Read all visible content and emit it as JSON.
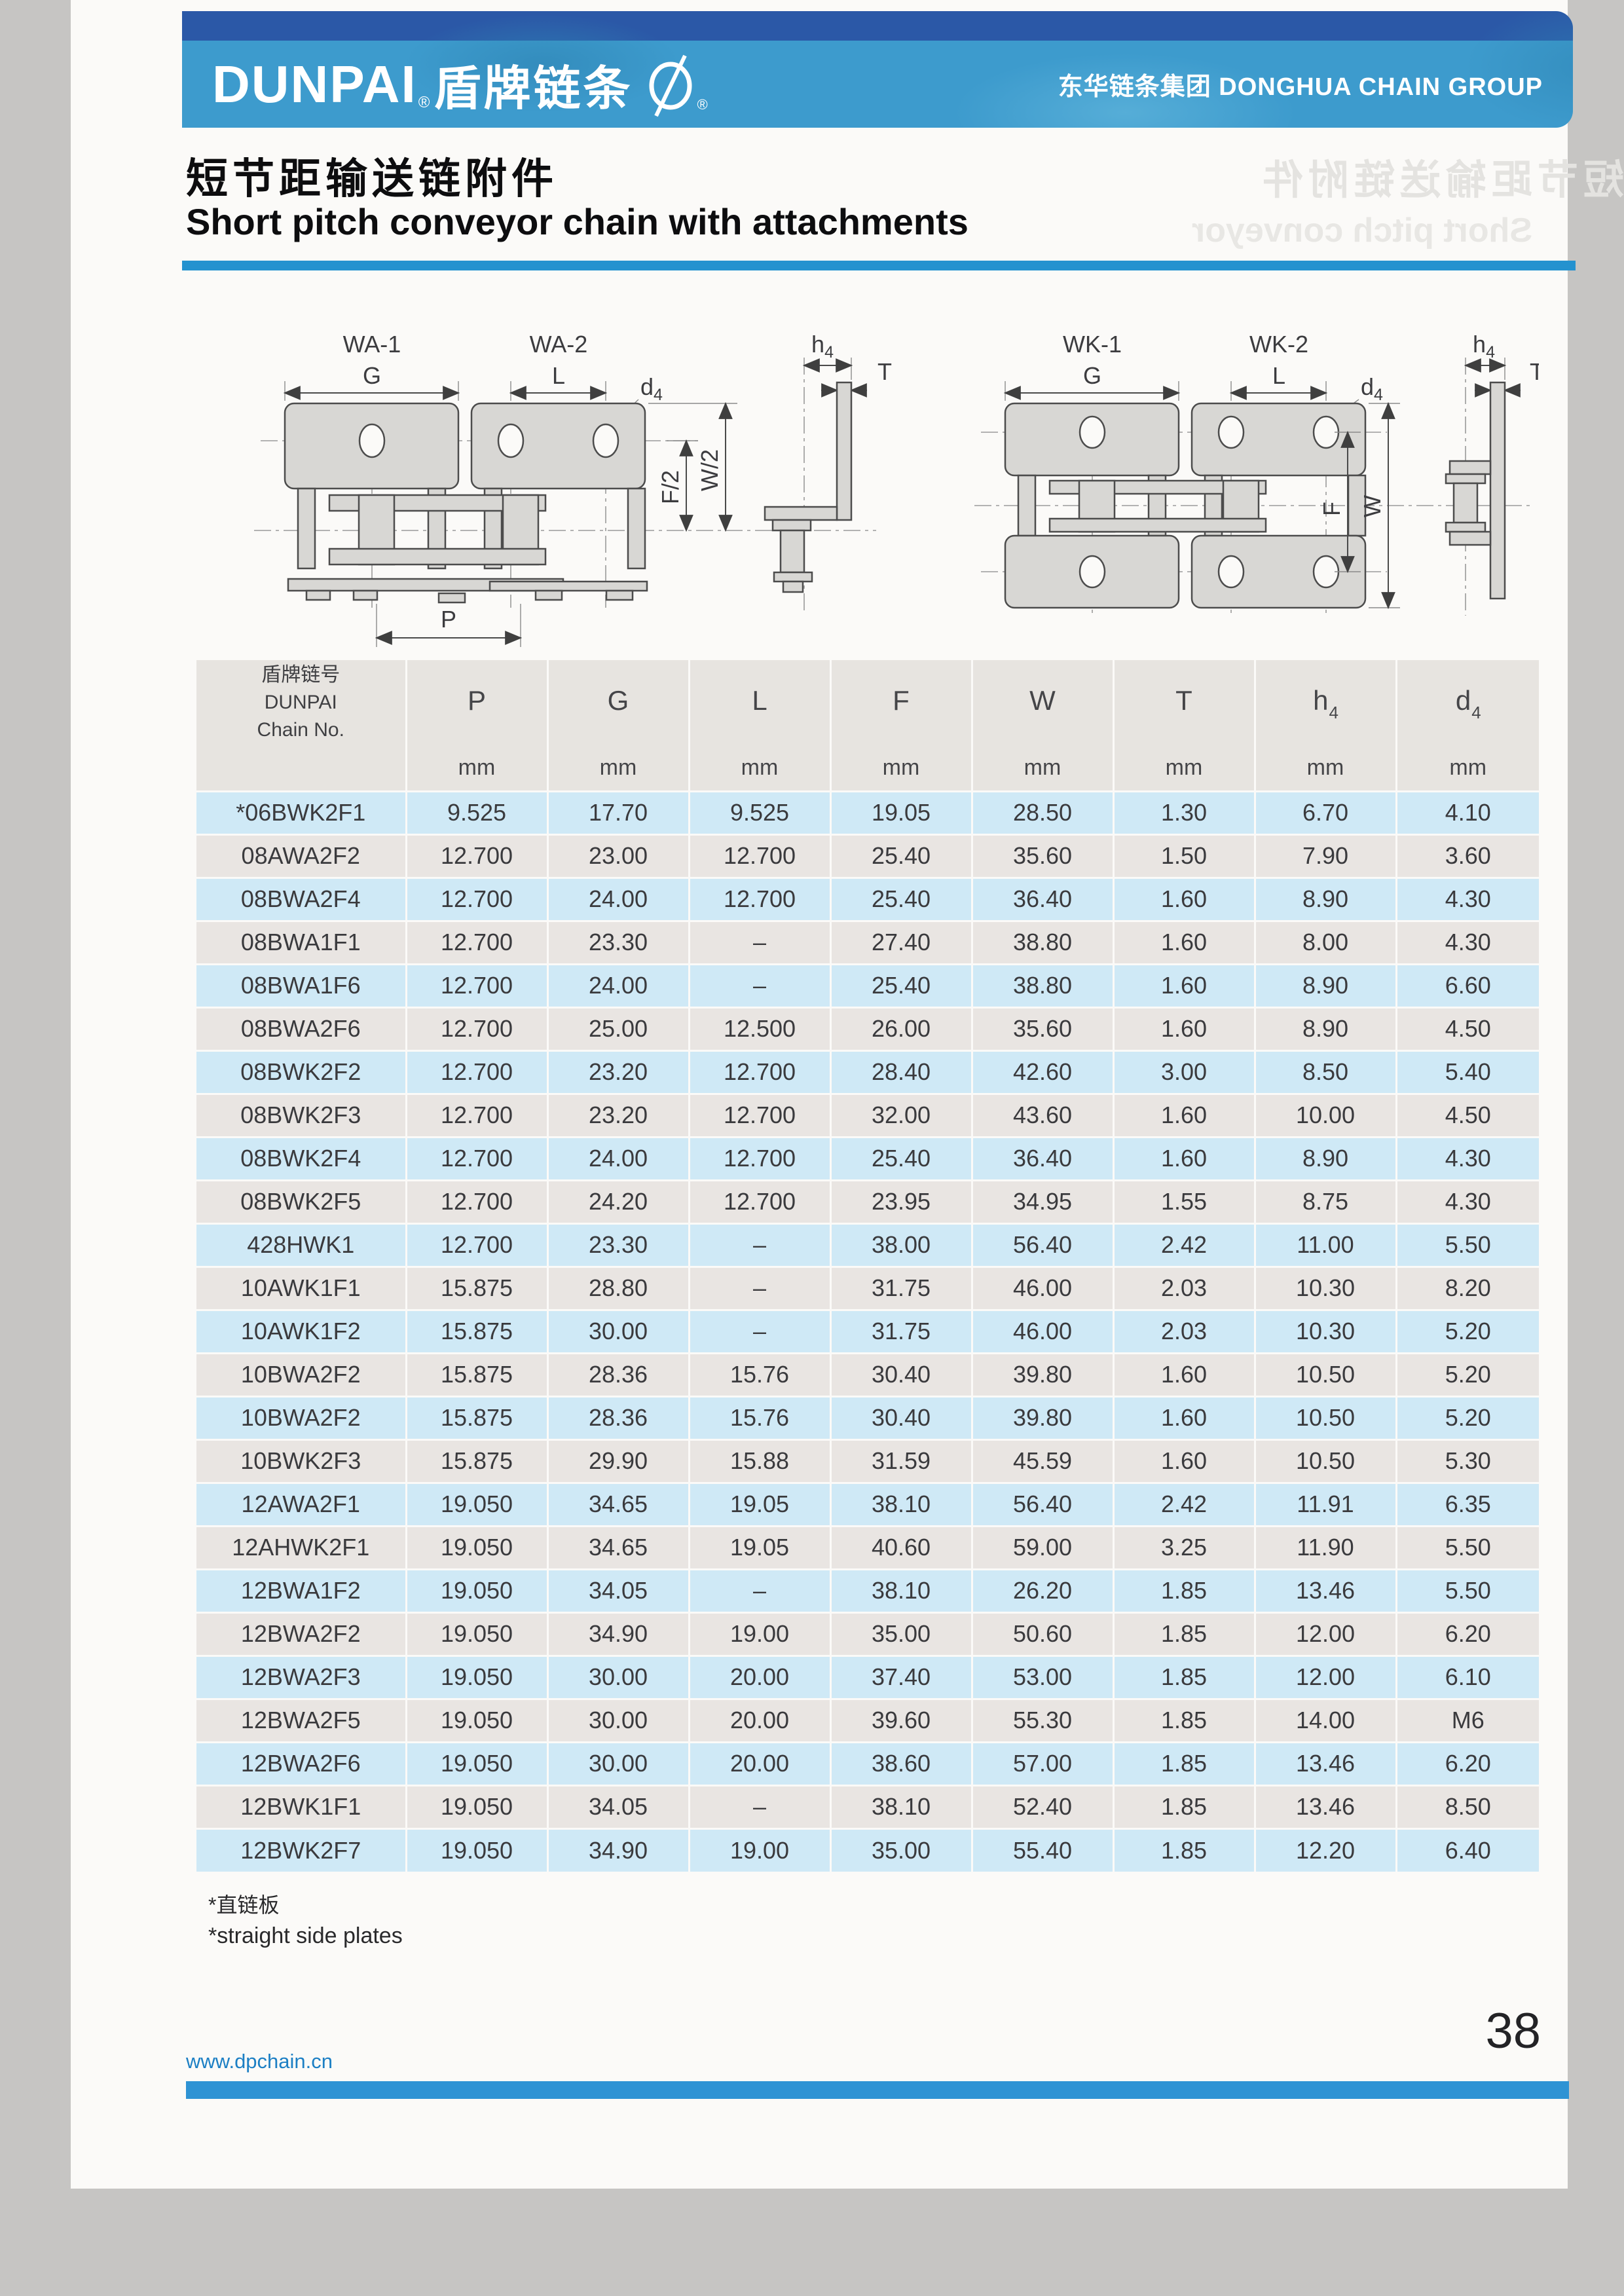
{
  "header": {
    "brand": "DUNPAI",
    "brand_reg": "®",
    "brand_cn": "盾牌链条",
    "logo_reg": "®",
    "group_cn": "东华链条集团",
    "group_en": "DONGHUA CHAIN GROUP"
  },
  "title": {
    "cn": "短节距输送链附件",
    "en": "Short pitch conveyor chain with attachments"
  },
  "ghost": {
    "cn": "短节距输送链附件",
    "en": "Short pitch conveyor"
  },
  "diagrams": {
    "wa": {
      "name1": "WA-1",
      "name2": "WA-2",
      "g": "G",
      "l": "L",
      "d4_main": "d",
      "d4_sub": "4",
      "h4_main": "h",
      "h4_sub": "4",
      "t": "T",
      "f_half": "F/2",
      "w_half": "W/2",
      "p": "P"
    },
    "wk": {
      "name1": "WK-1",
      "name2": "WK-2",
      "g": "G",
      "l": "L",
      "d4_main": "d",
      "d4_sub": "4",
      "h4_main": "h",
      "h4_sub": "4",
      "t": "T",
      "f": "F",
      "w": "W"
    }
  },
  "table": {
    "chain_col": {
      "line1": "盾牌链号",
      "line2": "DUNPAI",
      "line3": "Chain No."
    },
    "columns": [
      {
        "main": "P",
        "sub": ""
      },
      {
        "main": "G",
        "sub": ""
      },
      {
        "main": "L",
        "sub": ""
      },
      {
        "main": "F",
        "sub": ""
      },
      {
        "main": "W",
        "sub": ""
      },
      {
        "main": "T",
        "sub": ""
      },
      {
        "main": "h",
        "sub": "4"
      },
      {
        "main": "d",
        "sub": "4"
      }
    ],
    "unit": "mm",
    "rows": [
      [
        "*06BWK2F1",
        "9.525",
        "17.70",
        "9.525",
        "19.05",
        "28.50",
        "1.30",
        "6.70",
        "4.10"
      ],
      [
        "08AWA2F2",
        "12.700",
        "23.00",
        "12.700",
        "25.40",
        "35.60",
        "1.50",
        "7.90",
        "3.60"
      ],
      [
        "08BWA2F4",
        "12.700",
        "24.00",
        "12.700",
        "25.40",
        "36.40",
        "1.60",
        "8.90",
        "4.30"
      ],
      [
        "08BWA1F1",
        "12.700",
        "23.30",
        "–",
        "27.40",
        "38.80",
        "1.60",
        "8.00",
        "4.30"
      ],
      [
        "08BWA1F6",
        "12.700",
        "24.00",
        "–",
        "25.40",
        "38.80",
        "1.60",
        "8.90",
        "6.60"
      ],
      [
        "08BWA2F6",
        "12.700",
        "25.00",
        "12.500",
        "26.00",
        "35.60",
        "1.60",
        "8.90",
        "4.50"
      ],
      [
        "08BWK2F2",
        "12.700",
        "23.20",
        "12.700",
        "28.40",
        "42.60",
        "3.00",
        "8.50",
        "5.40"
      ],
      [
        "08BWK2F3",
        "12.700",
        "23.20",
        "12.700",
        "32.00",
        "43.60",
        "1.60",
        "10.00",
        "4.50"
      ],
      [
        "08BWK2F4",
        "12.700",
        "24.00",
        "12.700",
        "25.40",
        "36.40",
        "1.60",
        "8.90",
        "4.30"
      ],
      [
        "08BWK2F5",
        "12.700",
        "24.20",
        "12.700",
        "23.95",
        "34.95",
        "1.55",
        "8.75",
        "4.30"
      ],
      [
        "428HWK1",
        "12.700",
        "23.30",
        "–",
        "38.00",
        "56.40",
        "2.42",
        "11.00",
        "5.50"
      ],
      [
        "10AWK1F1",
        "15.875",
        "28.80",
        "–",
        "31.75",
        "46.00",
        "2.03",
        "10.30",
        "8.20"
      ],
      [
        "10AWK1F2",
        "15.875",
        "30.00",
        "–",
        "31.75",
        "46.00",
        "2.03",
        "10.30",
        "5.20"
      ],
      [
        "10BWA2F2",
        "15.875",
        "28.36",
        "15.76",
        "30.40",
        "39.80",
        "1.60",
        "10.50",
        "5.20"
      ],
      [
        "10BWA2F2",
        "15.875",
        "28.36",
        "15.76",
        "30.40",
        "39.80",
        "1.60",
        "10.50",
        "5.20"
      ],
      [
        "10BWK2F3",
        "15.875",
        "29.90",
        "15.88",
        "31.59",
        "45.59",
        "1.60",
        "10.50",
        "5.30"
      ],
      [
        "12AWA2F1",
        "19.050",
        "34.65",
        "19.05",
        "38.10",
        "56.40",
        "2.42",
        "11.91",
        "6.35"
      ],
      [
        "12AHWK2F1",
        "19.050",
        "34.65",
        "19.05",
        "40.60",
        "59.00",
        "3.25",
        "11.90",
        "5.50"
      ],
      [
        "12BWA1F2",
        "19.050",
        "34.05",
        "–",
        "38.10",
        "26.20",
        "1.85",
        "13.46",
        "5.50"
      ],
      [
        "12BWA2F2",
        "19.050",
        "34.90",
        "19.00",
        "35.00",
        "50.60",
        "1.85",
        "12.00",
        "6.20"
      ],
      [
        "12BWA2F3",
        "19.050",
        "30.00",
        "20.00",
        "37.40",
        "53.00",
        "1.85",
        "12.00",
        "6.10"
      ],
      [
        "12BWA2F5",
        "19.050",
        "30.00",
        "20.00",
        "39.60",
        "55.30",
        "1.85",
        "14.00",
        "M6"
      ],
      [
        "12BWA2F6",
        "19.050",
        "30.00",
        "20.00",
        "38.60",
        "57.00",
        "1.85",
        "13.46",
        "6.20"
      ],
      [
        "12BWK1F1",
        "19.050",
        "34.05",
        "–",
        "38.10",
        "52.40",
        "1.85",
        "13.46",
        "8.50"
      ],
      [
        "12BWK2F7",
        "19.050",
        "34.90",
        "19.00",
        "35.00",
        "55.40",
        "1.85",
        "12.20",
        "6.40"
      ]
    ]
  },
  "footnotes": {
    "cn": "*直链板",
    "en": "*straight side plates"
  },
  "footer": {
    "website": "www.dpchain.cn",
    "page_number": "38"
  },
  "colors": {
    "stripe-blue": "#2b58a7",
    "band-blue": "#3d9bcd",
    "accent-blue": "#2492cf",
    "footer-blue": "#2e93d4",
    "row-blue": "#cfe9f6",
    "row-gray": "#e9e5e2",
    "head-gray": "#e7e4e0",
    "link-blue": "#1c7fc4"
  }
}
